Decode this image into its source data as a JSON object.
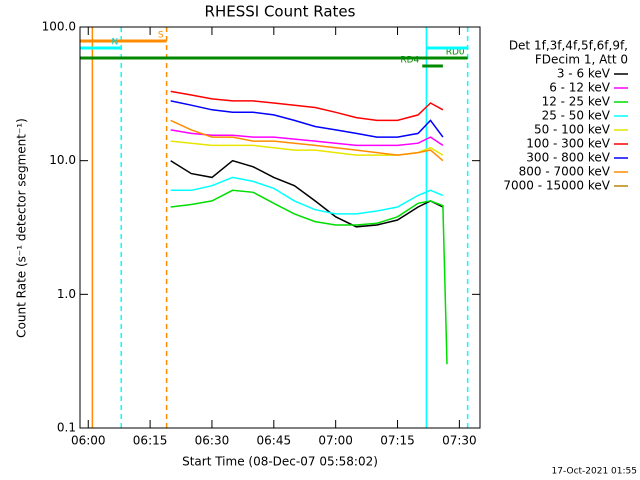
{
  "chart_data": {
    "type": "line",
    "title": "RHESSI Count Rates",
    "x_label": "Start Time (08-Dec-07 05:58:02)",
    "y_label": "Count Rate (s⁻¹ detector segment⁻¹)",
    "legend_title": [
      "Det 1f,3f,4f,5f,6f,9f,",
      "FDecim 1, Att 0"
    ],
    "footer": "17-Oct-2021 01:55",
    "log_y": true,
    "xlim": [
      "05:58",
      "07:35"
    ],
    "xticks": [
      "06:00",
      "06:15",
      "06:30",
      "06:45",
      "07:00",
      "07:15",
      "07:30"
    ],
    "ylim": [
      0.1,
      100
    ],
    "yticks": [
      0.1,
      {
        "value": 1,
        "label": "1.0"
      },
      {
        "value": 10,
        "label": "10.0"
      },
      {
        "value": 100,
        "label": "100.0"
      }
    ],
    "x": [
      "06:20",
      "06:25",
      "06:30",
      "06:35",
      "06:40",
      "06:45",
      "06:50",
      "06:55",
      "07:00",
      "07:05",
      "07:10",
      "07:15",
      "07:20",
      "07:23",
      "07:26",
      "07:27"
    ],
    "series": [
      {
        "name": "3 - 6 keV",
        "color": "#000000",
        "values": [
          10,
          8,
          7.5,
          10,
          9,
          7.5,
          6.5,
          5,
          3.8,
          3.2,
          3.3,
          3.6,
          4.5,
          5,
          4.5,
          null
        ]
      },
      {
        "name": "6 - 12 keV",
        "color": "#ff00ff",
        "values": [
          17,
          16,
          15.5,
          15.5,
          15,
          15,
          14.5,
          14,
          13.5,
          13,
          13,
          13,
          13.5,
          15,
          13,
          null
        ]
      },
      {
        "name": "12 - 25 keV",
        "color": "#00dd00",
        "values": [
          4.5,
          4.7,
          5,
          6,
          5.8,
          4.8,
          4,
          3.5,
          3.3,
          3.3,
          3.4,
          3.8,
          4.8,
          5,
          4.6,
          0.3
        ]
      },
      {
        "name": "25 - 50 keV",
        "color": "#00ffff",
        "values": [
          6,
          6,
          6.5,
          7.5,
          7,
          6.2,
          5,
          4.3,
          4,
          4,
          4.2,
          4.5,
          5.5,
          6,
          5.5,
          null
        ]
      },
      {
        "name": "50 - 100 keV",
        "color": "#e6e600",
        "values": [
          14,
          13.5,
          13,
          13,
          13,
          12.5,
          12,
          12,
          11.5,
          11,
          11,
          11,
          11.5,
          12.5,
          11,
          null
        ]
      },
      {
        "name": "100 - 300 keV",
        "color": "#ff0000",
        "values": [
          33,
          31,
          29,
          28,
          28,
          27,
          26,
          25,
          23,
          21,
          20,
          20,
          22,
          27,
          24,
          null
        ]
      },
      {
        "name": "300 - 800 keV",
        "color": "#0000ff",
        "values": [
          28,
          26,
          24,
          23,
          23,
          22,
          20,
          18,
          17,
          16,
          15,
          15,
          16,
          20,
          15,
          null
        ]
      },
      {
        "name": "800 - 7000 keV",
        "color": "#ff8c00",
        "values": [
          20,
          17,
          15,
          15,
          14,
          14,
          13.5,
          13,
          12.5,
          12,
          11.5,
          11,
          11.5,
          12,
          10,
          null
        ]
      },
      {
        "name": "7000 - 15000 keV",
        "color": "#b8860b",
        "values": [
          null,
          null,
          null,
          null,
          null,
          null,
          null,
          null,
          null,
          null,
          null,
          null,
          null,
          null,
          null,
          null
        ]
      }
    ],
    "markers": [
      {
        "time": "06:01",
        "color": "#ff8c00",
        "dashed": false
      },
      {
        "time": "06:08",
        "color": "#00ffff",
        "dashed": true
      },
      {
        "time": "06:19",
        "color": "#ff8c00",
        "dashed": true
      },
      {
        "time": "07:22",
        "color": "#00ffff",
        "dashed": false
      },
      {
        "time": "07:32",
        "color": "#00ffff",
        "dashed": true
      }
    ],
    "intervals": [
      {
        "label": "S",
        "start": "05:58",
        "end": "06:19",
        "color": "#ff8c00"
      },
      {
        "label": "N",
        "start": "05:58",
        "end": "06:08",
        "color": "#00ffff"
      },
      {
        "label": "RD0",
        "start": "05:58",
        "end": "07:32",
        "color": "#008800"
      },
      {
        "label": "RD4",
        "start": "07:21",
        "end": "07:26",
        "color": "#008800"
      },
      {
        "start": "07:22",
        "end": "07:32",
        "color": "#00ffff"
      }
    ]
  }
}
